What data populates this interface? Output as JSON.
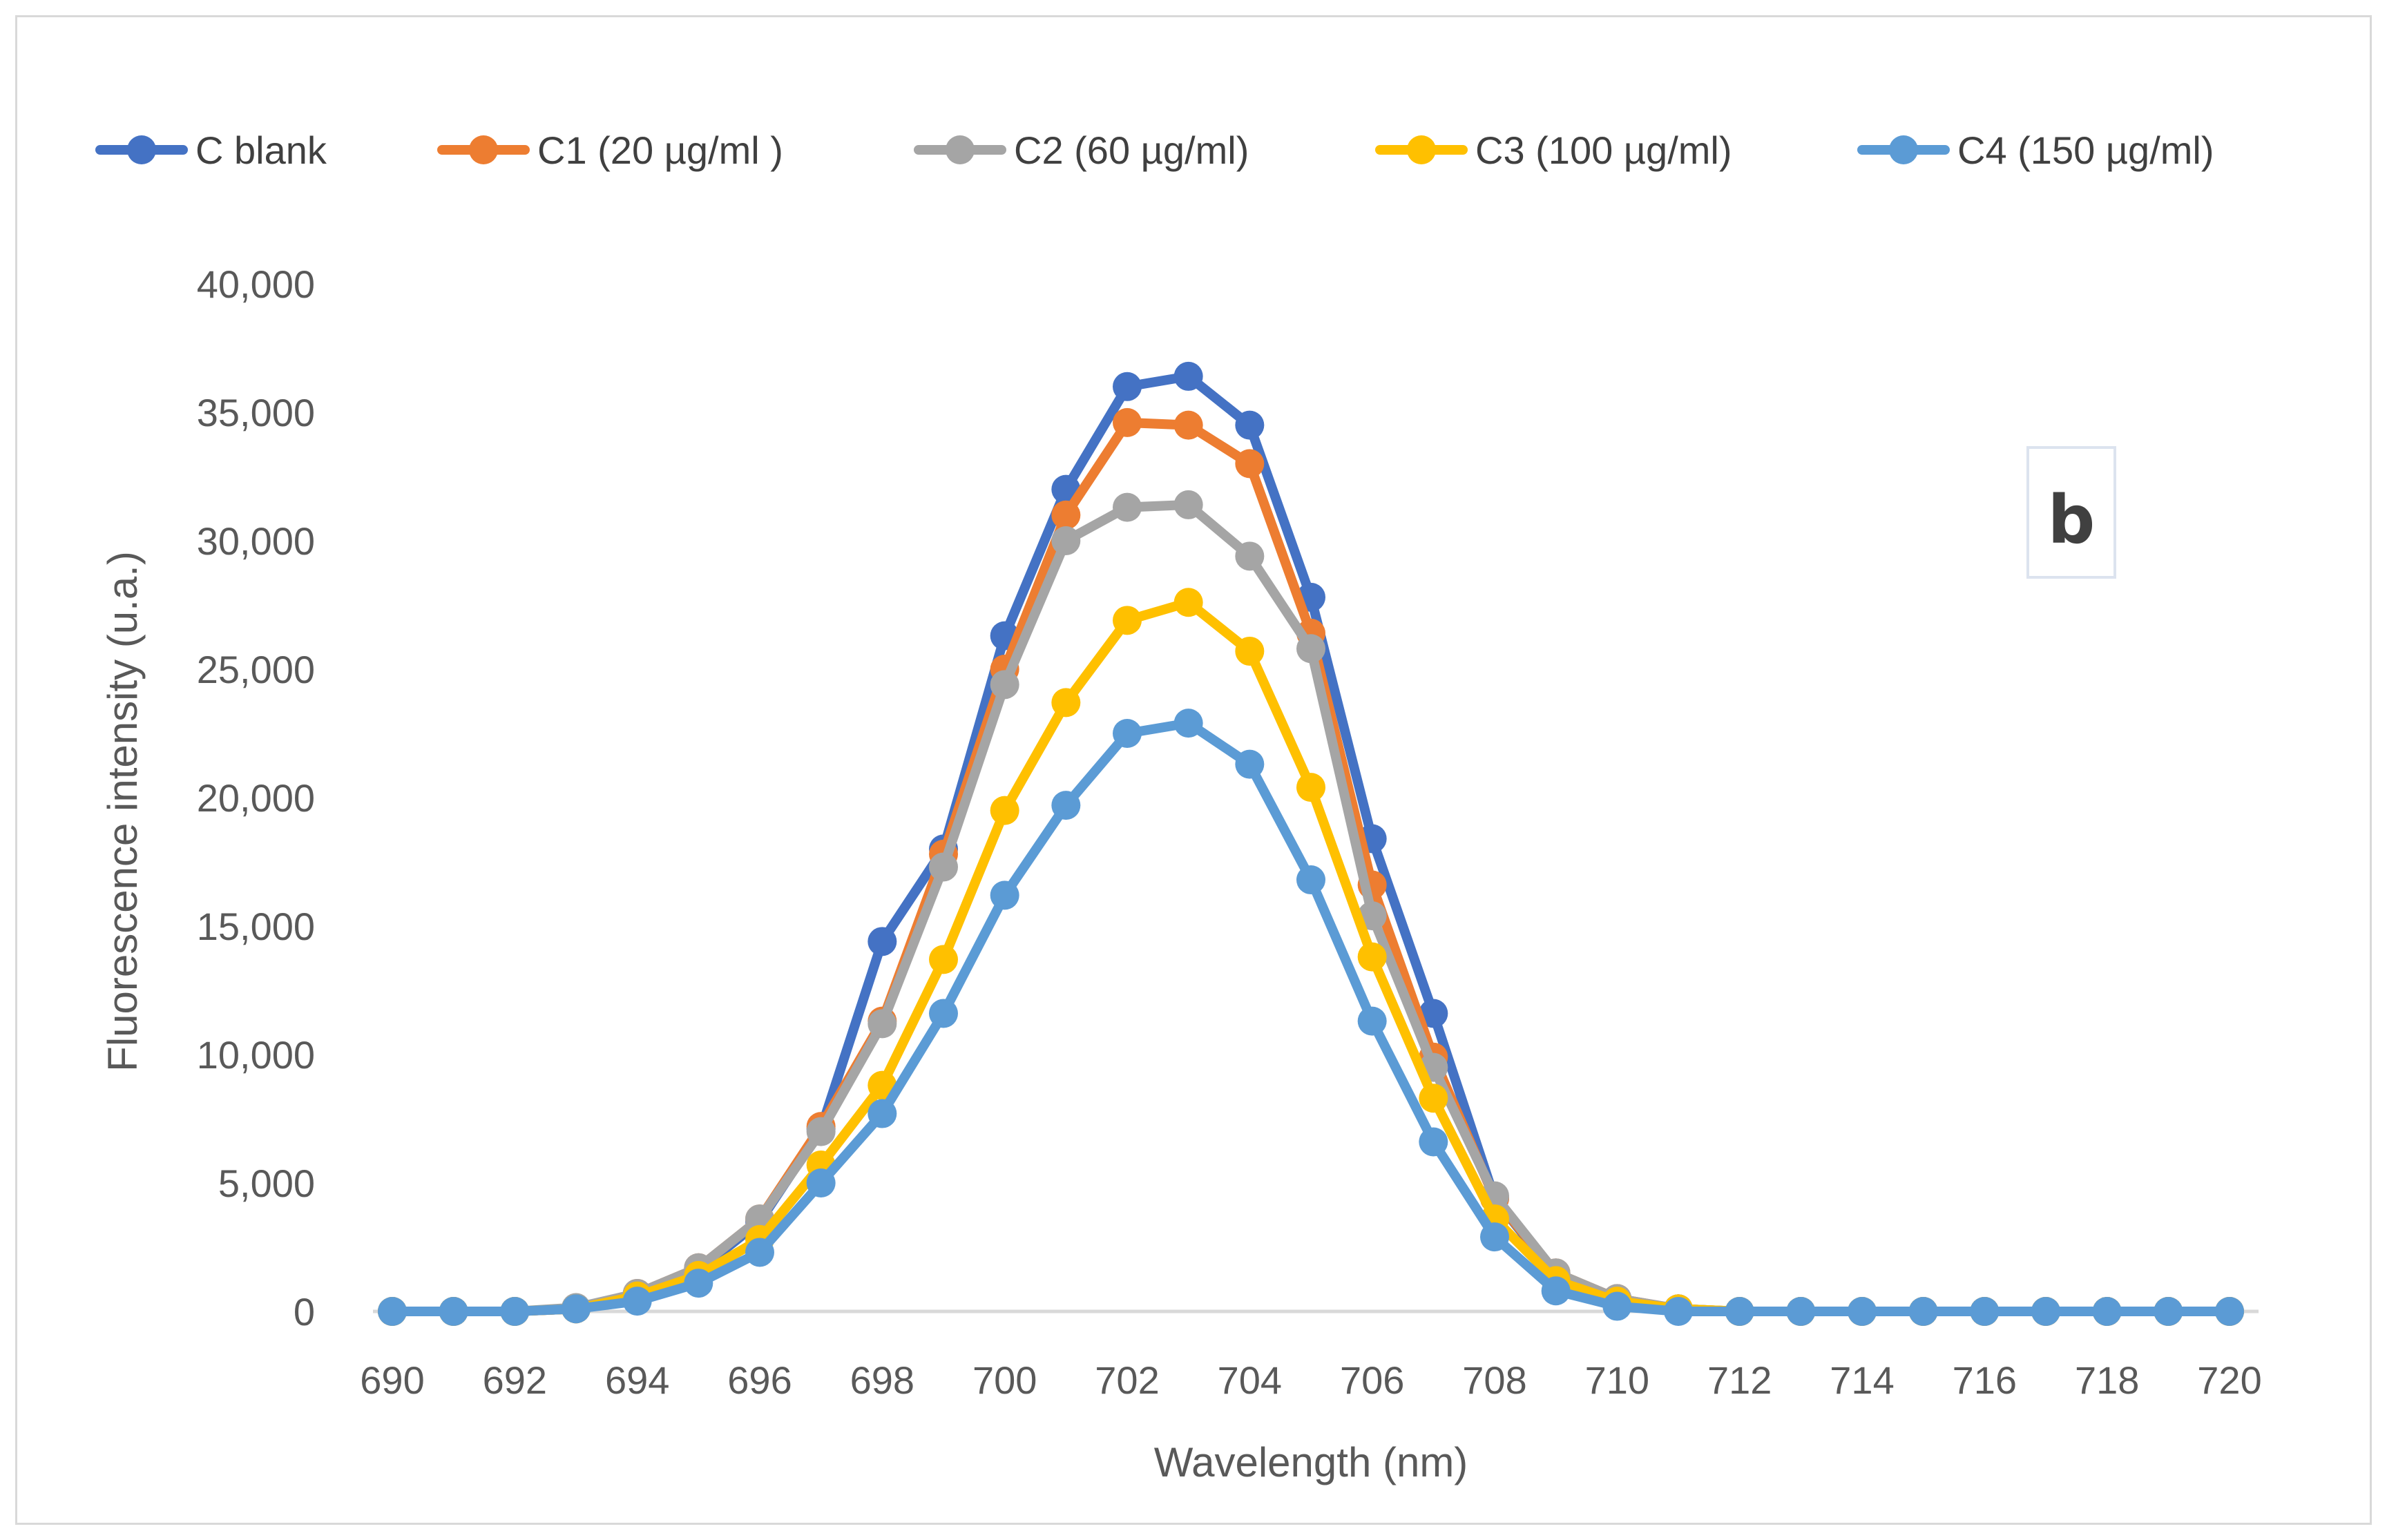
{
  "chart_data": {
    "type": "line",
    "title": "",
    "xlabel": "Wavelength (nm)",
    "ylabel": "Fluorescence intensity (u.a.)",
    "panel_label": "b",
    "xlim": [
      690,
      720
    ],
    "ylim": [
      0,
      40000
    ],
    "x_ticks": [
      690,
      692,
      694,
      696,
      698,
      700,
      702,
      704,
      706,
      708,
      710,
      712,
      714,
      716,
      718,
      720
    ],
    "x_tick_labels": [
      "690",
      "692",
      "694",
      "696",
      "698",
      "700",
      "702",
      "704",
      "706",
      "708",
      "710",
      "712",
      "714",
      "716",
      "718",
      "720"
    ],
    "y_ticks": [
      0,
      5000,
      10000,
      15000,
      20000,
      25000,
      30000,
      35000,
      40000
    ],
    "y_tick_labels": [
      "0",
      "5,000",
      "10,000",
      "15,000",
      "20,000",
      "25,000",
      "30,000",
      "35,000",
      "40,000"
    ],
    "legend_position": "top",
    "grid": false,
    "x": [
      690,
      691,
      692,
      693,
      694,
      695,
      696,
      697,
      698,
      699,
      700,
      701,
      702,
      703,
      704,
      705,
      706,
      707,
      708,
      709,
      710,
      711,
      712,
      713,
      714,
      715,
      716,
      717,
      718,
      719,
      720
    ],
    "series": [
      {
        "name": "C blank",
        "color": "#4472c4",
        "values": [
          0,
          0,
          0,
          100,
          600,
          1600,
          3500,
          7100,
          14400,
          18000,
          26300,
          32000,
          36000,
          36400,
          34500,
          27800,
          18400,
          11600,
          4400,
          1400,
          400,
          100,
          0,
          0,
          0,
          0,
          0,
          0,
          0,
          0,
          0
        ]
      },
      {
        "name": "C1 (20 µg/ml )",
        "color": "#ed7d31",
        "values": [
          0,
          0,
          0,
          100,
          700,
          1700,
          3600,
          7200,
          11300,
          17800,
          25000,
          31000,
          34600,
          34500,
          33000,
          26400,
          16600,
          9900,
          4400,
          1500,
          500,
          100,
          0,
          0,
          0,
          0,
          0,
          0,
          0,
          0,
          0
        ]
      },
      {
        "name": "C2 (60 µg/ml)",
        "color": "#a5a5a5",
        "values": [
          0,
          0,
          0,
          150,
          700,
          1700,
          3600,
          7000,
          11200,
          17300,
          24400,
          30000,
          31300,
          31400,
          29400,
          25800,
          15400,
          9500,
          4500,
          1500,
          500,
          100,
          0,
          0,
          0,
          0,
          0,
          0,
          0,
          0,
          0
        ]
      },
      {
        "name": "C3 (100 µg/ml)",
        "color": "#ffc000",
        "values": [
          0,
          0,
          0,
          100,
          600,
          1400,
          2800,
          5700,
          8800,
          13700,
          19500,
          23700,
          26900,
          27600,
          25700,
          20400,
          13800,
          8300,
          3600,
          1200,
          400,
          100,
          0,
          0,
          0,
          0,
          0,
          0,
          0,
          0,
          0
        ]
      },
      {
        "name": "C4 (150 µg/ml)",
        "color": "#5b9bd5",
        "values": [
          0,
          0,
          0,
          100,
          400,
          1100,
          2300,
          5000,
          7700,
          11600,
          16200,
          19700,
          22500,
          22900,
          21300,
          16800,
          11300,
          6600,
          2900,
          800,
          200,
          0,
          0,
          0,
          0,
          0,
          0,
          0,
          0,
          0,
          0
        ]
      }
    ],
    "axis_color": "#d9d9d9",
    "text_color": "#595959"
  }
}
